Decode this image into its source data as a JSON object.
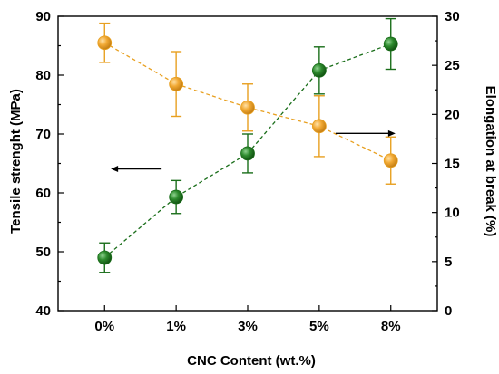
{
  "chart_data": {
    "type": "scatter",
    "x_label": "CNC Content (wt.%)",
    "categories": [
      "0%",
      "1%",
      "3%",
      "5%",
      "8%"
    ],
    "y_left": {
      "label": "Tensile strenght (MPa)",
      "ylim": [
        40,
        90
      ],
      "ticks": [
        40,
        50,
        60,
        70,
        80,
        90
      ]
    },
    "y_right": {
      "label": "Elongation at break (%)",
      "ylim": [
        0,
        30
      ],
      "ticks": [
        0,
        5,
        10,
        15,
        20,
        25,
        30
      ]
    },
    "series": [
      {
        "axis": "left",
        "color": "#1a6e1a",
        "values": [
          49.0,
          59.3,
          66.7,
          80.8,
          85.3
        ],
        "errors": [
          2.5,
          2.8,
          3.3,
          4.0,
          4.3
        ],
        "arrow": "left"
      },
      {
        "axis": "right",
        "color": "#e8a020",
        "values": [
          27.3,
          23.1,
          20.7,
          18.8,
          15.3
        ],
        "errors": [
          2.0,
          3.3,
          2.4,
          3.1,
          2.4
        ],
        "arrow": "right"
      }
    ]
  }
}
